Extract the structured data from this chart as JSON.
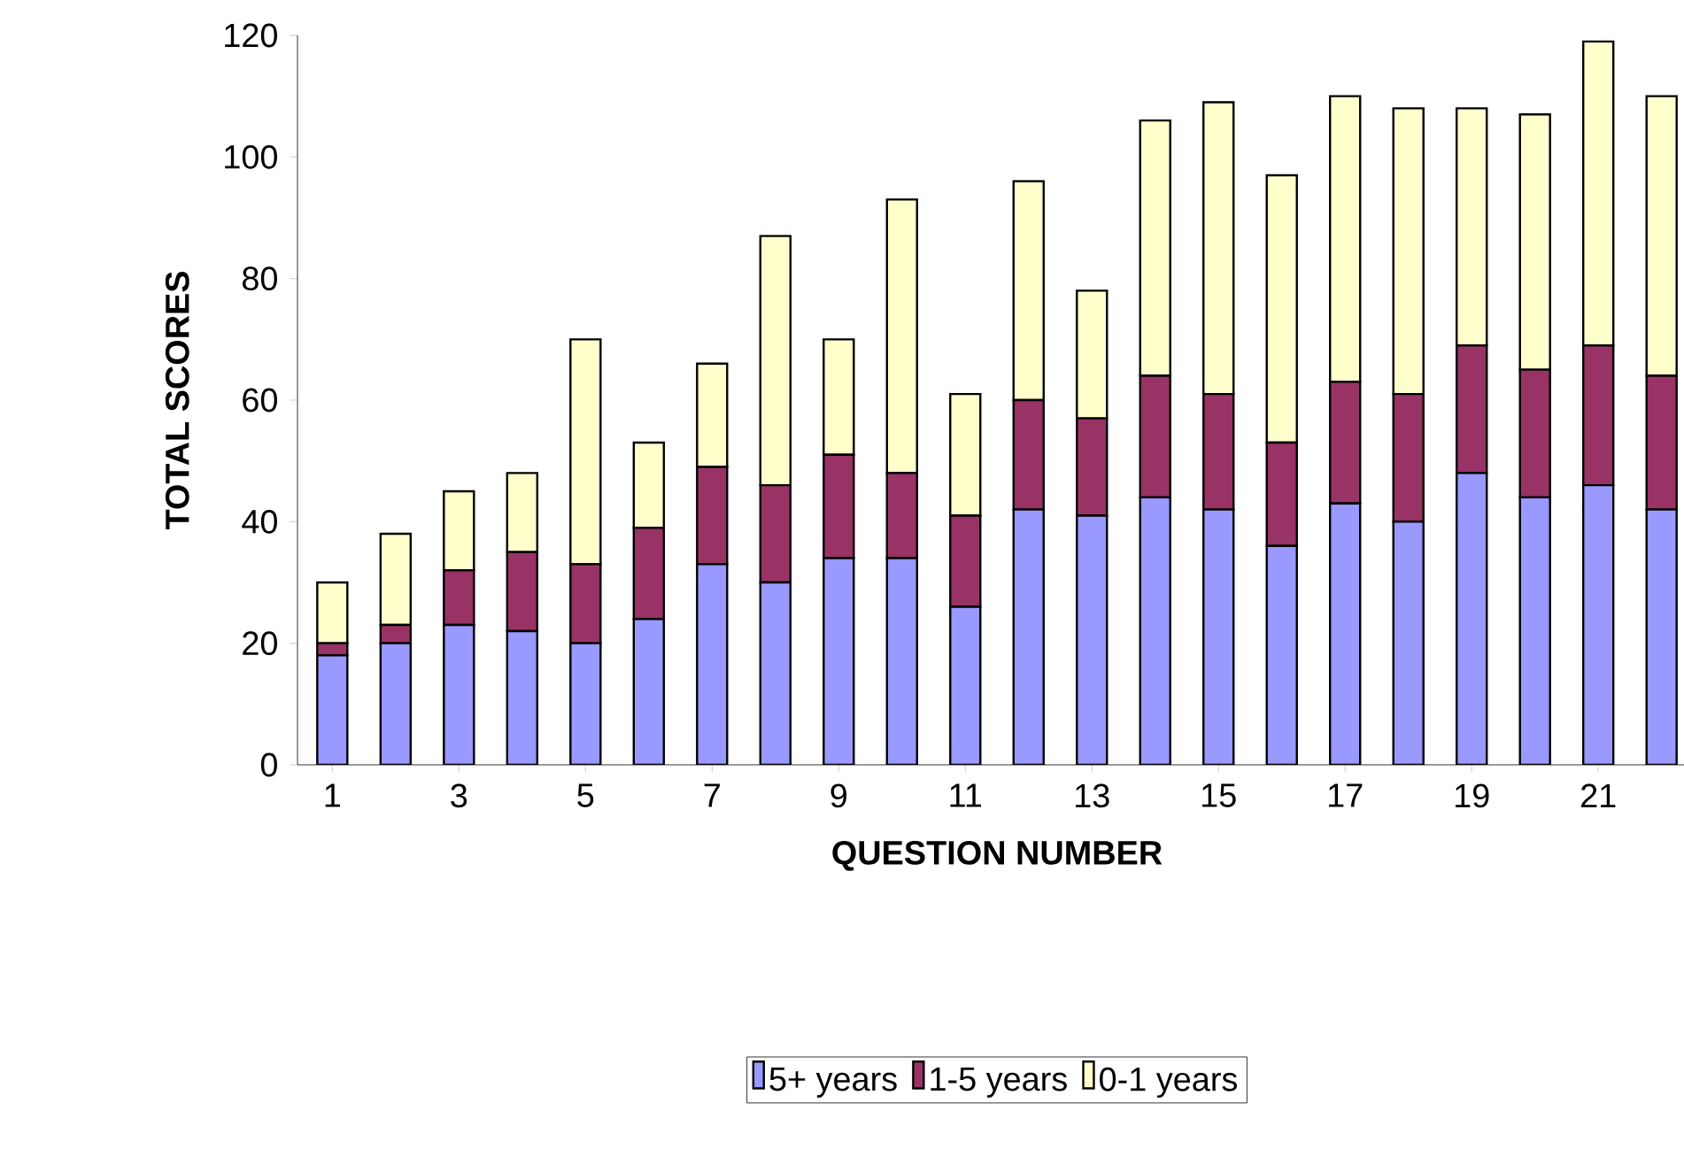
{
  "chart_data": {
    "type": "bar",
    "stacked": true,
    "xlabel": "QUESTION NUMBER",
    "ylabel": "TOTAL SCORES",
    "categories": [
      "1",
      null,
      "3",
      null,
      "5",
      null,
      "7",
      null,
      "9",
      null,
      "11",
      null,
      "13",
      null,
      "15",
      null,
      "17",
      null,
      "19",
      null,
      "21",
      null
    ],
    "series": [
      {
        "name": "5+ years",
        "color": "#9999ff",
        "values": [
          18,
          20,
          23,
          22,
          20,
          24,
          33,
          30,
          34,
          34,
          26,
          42,
          41,
          44,
          42,
          36,
          43,
          40,
          48,
          44,
          46,
          42
        ]
      },
      {
        "name": "1-5 years",
        "color": "#993366",
        "values": [
          2,
          3,
          9,
          13,
          13,
          15,
          16,
          16,
          17,
          14,
          15,
          18,
          16,
          20,
          19,
          17,
          20,
          21,
          21,
          21,
          23,
          22
        ]
      },
      {
        "name": "0-1 years",
        "color": "#ffffcc",
        "values": [
          10,
          15,
          13,
          13,
          37,
          14,
          17,
          41,
          19,
          45,
          20,
          36,
          21,
          42,
          48,
          44,
          47,
          47,
          39,
          42,
          50,
          46
        ]
      }
    ],
    "ylim": [
      0,
      120
    ],
    "yticks": [
      0,
      20,
      40,
      60,
      80,
      100,
      120
    ],
    "legend": "bottom",
    "grid": false
  }
}
